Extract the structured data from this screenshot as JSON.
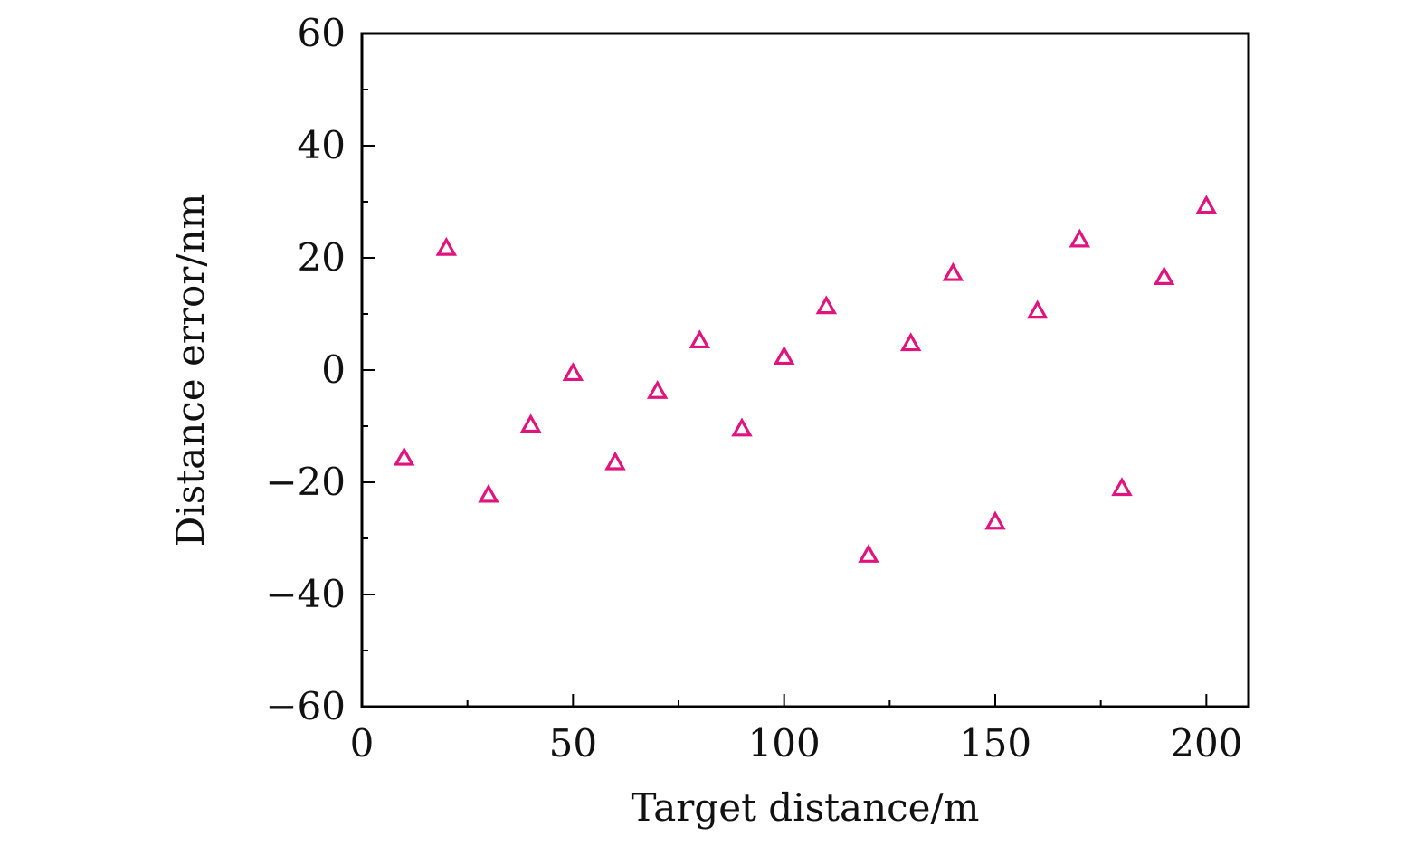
{
  "chart_data": {
    "type": "scatter",
    "title": "",
    "xlabel": "Target distance/m",
    "ylabel": "Distance error/nm",
    "xlim": [
      0,
      210
    ],
    "ylim": [
      -60,
      60
    ],
    "x_ticks": [
      0,
      50,
      100,
      150,
      200
    ],
    "x_tick_labels": [
      "0",
      "50",
      "100",
      "150",
      "200"
    ],
    "x_minor_ticks": [
      25,
      75,
      125,
      175
    ],
    "y_ticks": [
      -60,
      -40,
      -20,
      0,
      20,
      40,
      60
    ],
    "y_tick_labels": [
      "−60",
      "−40",
      "−20",
      "0",
      "20",
      "40",
      "60"
    ],
    "y_minor_ticks": [
      -50,
      -30,
      -10,
      10,
      30,
      50
    ],
    "grid": false,
    "legend": "none",
    "series": [
      {
        "marker": "open-triangle",
        "color": "#e0147d",
        "x": [
          10,
          20,
          30,
          40,
          50,
          60,
          70,
          80,
          90,
          100,
          110,
          120,
          130,
          140,
          150,
          160,
          170,
          180,
          190,
          200
        ],
        "y": [
          -15.8,
          21.6,
          -22.4,
          -9.9,
          -0.7,
          -16.6,
          -3.9,
          5.1,
          -10.6,
          2.2,
          11.2,
          -33.1,
          4.6,
          17.1,
          -27.2,
          10.4,
          23.1,
          -21.2,
          16.4,
          29.1
        ]
      }
    ]
  }
}
